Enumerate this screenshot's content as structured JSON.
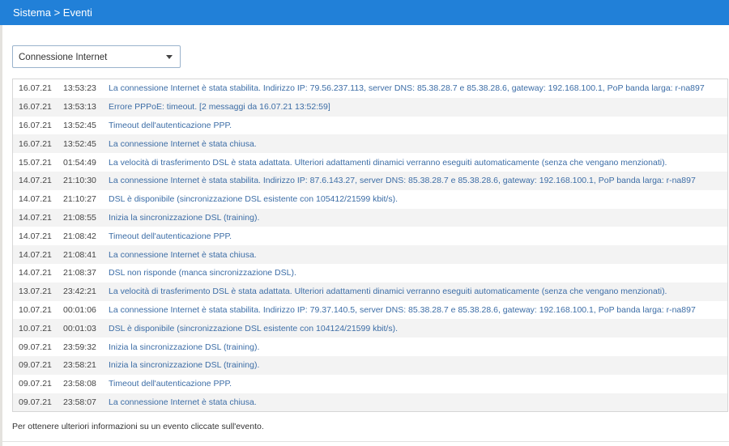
{
  "header": {
    "breadcrumb": "Sistema > Eventi"
  },
  "filter": {
    "selected": "Connessione Internet"
  },
  "events": [
    {
      "date": "16.07.21",
      "time": "13:53:23",
      "message": "La connessione Internet è stata stabilita. Indirizzo IP: 79.56.237.113, server DNS: 85.38.28.7 e 85.38.28.6, gateway: 192.168.100.1, PoP banda larga: r-na897"
    },
    {
      "date": "16.07.21",
      "time": "13:53:13",
      "message": "Errore PPPoE: timeout. [2 messaggi da 16.07.21 13:52:59]"
    },
    {
      "date": "16.07.21",
      "time": "13:52:45",
      "message": "Timeout dell'autenticazione PPP."
    },
    {
      "date": "16.07.21",
      "time": "13:52:45",
      "message": "La connessione Internet è stata chiusa."
    },
    {
      "date": "15.07.21",
      "time": "01:54:49",
      "message": "La velocità di trasferimento DSL è stata adattata. Ulteriori adattamenti dinamici verranno eseguiti automaticamente (senza che vengano menzionati)."
    },
    {
      "date": "14.07.21",
      "time": "21:10:30",
      "message": "La connessione Internet è stata stabilita. Indirizzo IP: 87.6.143.27, server DNS: 85.38.28.7 e 85.38.28.6, gateway: 192.168.100.1, PoP banda larga: r-na897"
    },
    {
      "date": "14.07.21",
      "time": "21:10:27",
      "message": "DSL è disponibile (sincronizzazione DSL esistente con 105412/21599 kbit/s)."
    },
    {
      "date": "14.07.21",
      "time": "21:08:55",
      "message": "Inizia la sincronizzazione DSL (training)."
    },
    {
      "date": "14.07.21",
      "time": "21:08:42",
      "message": "Timeout dell'autenticazione PPP."
    },
    {
      "date": "14.07.21",
      "time": "21:08:41",
      "message": "La connessione Internet è stata chiusa."
    },
    {
      "date": "14.07.21",
      "time": "21:08:37",
      "message": "DSL non risponde (manca sincronizzazione DSL)."
    },
    {
      "date": "13.07.21",
      "time": "23:42:21",
      "message": "La velocità di trasferimento DSL è stata adattata. Ulteriori adattamenti dinamici verranno eseguiti automaticamente (senza che vengano menzionati)."
    },
    {
      "date": "10.07.21",
      "time": "00:01:06",
      "message": "La connessione Internet è stata stabilita. Indirizzo IP: 79.37.140.5, server DNS: 85.38.28.7 e 85.38.28.6, gateway: 192.168.100.1, PoP banda larga: r-na897"
    },
    {
      "date": "10.07.21",
      "time": "00:01:03",
      "message": "DSL è disponibile (sincronizzazione DSL esistente con 104124/21599 kbit/s)."
    },
    {
      "date": "09.07.21",
      "time": "23:59:32",
      "message": "Inizia la sincronizzazione DSL (training)."
    },
    {
      "date": "09.07.21",
      "time": "23:58:21",
      "message": "Inizia la sincronizzazione DSL (training)."
    },
    {
      "date": "09.07.21",
      "time": "23:58:08",
      "message": "Timeout dell'autenticazione PPP."
    },
    {
      "date": "09.07.21",
      "time": "23:58:07",
      "message": "La connessione Internet è stata chiusa."
    }
  ],
  "footer": {
    "hint": "Per ottenere ulteriori informazioni su un evento cliccate sull'evento."
  }
}
